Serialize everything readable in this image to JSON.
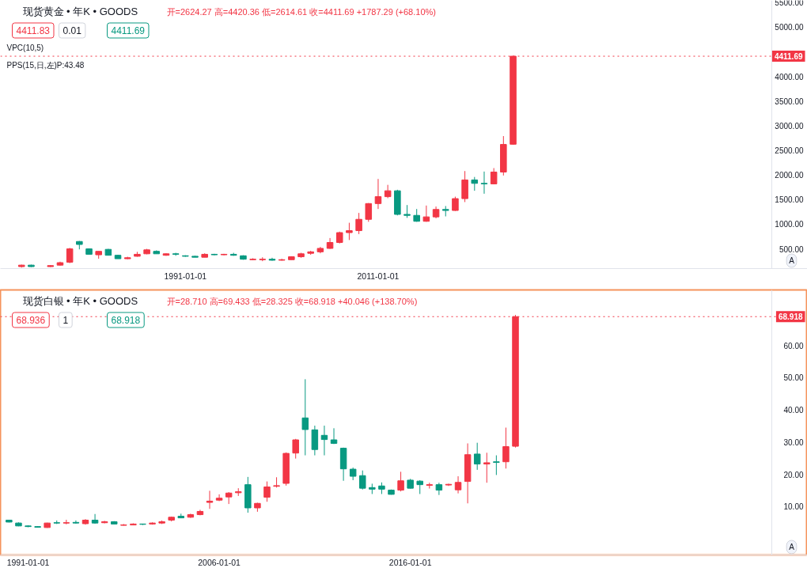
{
  "chart_data": [
    {
      "type": "candlestick",
      "title": "现货黄金 • 年K • GOODS",
      "subtitle": "开=2624.27 高=4420.36 低=2614.61 收=4411.69 +1787.29 (+68.10%)",
      "annotations": [
        "4411.83",
        "0.01",
        "4411.69",
        "VPC(10,5)",
        "PPS(15,日,左)P:43.48",
        "A"
      ],
      "x": [
        "1974",
        "1975",
        "1977",
        "1978",
        "1979",
        "1980",
        "1981",
        "1982",
        "1983",
        "1984",
        "1985",
        "1986",
        "1987",
        "1988",
        "1989",
        "1990",
        "1991",
        "1992",
        "1993",
        "1994",
        "1995",
        "1996",
        "1997",
        "1998",
        "1999",
        "2000",
        "2001",
        "2002",
        "2003",
        "2004",
        "2005",
        "2006",
        "2007",
        "2008",
        "2009",
        "2010",
        "2011",
        "2012",
        "2013",
        "2014",
        "2015",
        "2016",
        "2017",
        "2018",
        "2019",
        "2020",
        "2021",
        "2022",
        "2023",
        "2024",
        "2025"
      ],
      "ohlc": [
        [
          140,
          180,
          120,
          170
        ],
        [
          170,
          180,
          130,
          140
        ],
        [
          140,
          170,
          130,
          160
        ],
        [
          170,
          240,
          160,
          220
        ],
        [
          230,
          520,
          210,
          500
        ],
        [
          650,
          660,
          490,
          590
        ],
        [
          500,
          510,
          390,
          390
        ],
        [
          380,
          450,
          300,
          450
        ],
        [
          490,
          500,
          370,
          370
        ],
        [
          370,
          380,
          300,
          300
        ],
        [
          300,
          340,
          290,
          320
        ],
        [
          350,
          440,
          340,
          390
        ],
        [
          400,
          500,
          390,
          480
        ],
        [
          450,
          470,
          400,
          400
        ],
        [
          370,
          410,
          360,
          400
        ],
        [
          400,
          420,
          360,
          390
        ],
        [
          360,
          370,
          340,
          350
        ],
        [
          350,
          360,
          330,
          330
        ],
        [
          330,
          410,
          330,
          390
        ],
        [
          390,
          400,
          370,
          380
        ],
        [
          380,
          400,
          370,
          390
        ],
        [
          390,
          420,
          360,
          370
        ],
        [
          360,
          370,
          280,
          290
        ],
        [
          280,
          310,
          270,
          290
        ],
        [
          280,
          330,
          250,
          290
        ],
        [
          290,
          320,
          260,
          270
        ],
        [
          270,
          300,
          260,
          280
        ],
        [
          280,
          350,
          280,
          340
        ],
        [
          340,
          420,
          320,
          400
        ],
        [
          410,
          460,
          380,
          440
        ],
        [
          440,
          540,
          410,
          510
        ],
        [
          510,
          720,
          500,
          630
        ],
        [
          630,
          850,
          610,
          830
        ],
        [
          830,
          1030,
          680,
          870
        ],
        [
          870,
          1230,
          800,
          1100
        ],
        [
          1100,
          1430,
          1050,
          1420
        ],
        [
          1420,
          1920,
          1310,
          1560
        ],
        [
          1560,
          1800,
          1530,
          1680
        ],
        [
          1680,
          1700,
          1180,
          1200
        ],
        [
          1200,
          1390,
          1130,
          1180
        ],
        [
          1180,
          1310,
          1050,
          1060
        ],
        [
          1060,
          1380,
          1050,
          1150
        ],
        [
          1150,
          1360,
          1120,
          1300
        ],
        [
          1300,
          1370,
          1160,
          1280
        ],
        [
          1280,
          1560,
          1270,
          1520
        ],
        [
          1520,
          2080,
          1450,
          1900
        ],
        [
          1900,
          1960,
          1680,
          1830
        ],
        [
          1830,
          2070,
          1620,
          1820
        ],
        [
          1820,
          2140,
          1810,
          2060
        ],
        [
          2060,
          2790,
          1990,
          2620
        ],
        [
          2624.27,
          4420.36,
          2614.61,
          4411.69
        ]
      ],
      "colors": [
        "#f23645",
        "#089981",
        "#f23645",
        "#f23645",
        "#f23645",
        "#089981",
        "#089981",
        "#f23645",
        "#089981",
        "#089981",
        "#f23645",
        "#f23645",
        "#f23645",
        "#089981",
        "#f23645",
        "#089981",
        "#089981",
        "#089981",
        "#f23645",
        "#089981",
        "#f23645",
        "#089981",
        "#089981",
        "#f23645",
        "#f23645",
        "#089981",
        "#f23645",
        "#f23645",
        "#f23645",
        "#f23645",
        "#f23645",
        "#f23645",
        "#f23645",
        "#f23645",
        "#f23645",
        "#f23645",
        "#f23645",
        "#f23645",
        "#089981",
        "#089981",
        "#089981",
        "#f23645",
        "#f23645",
        "#089981",
        "#f23645",
        "#f23645",
        "#089981",
        "#089981",
        "#f23645",
        "#f23645",
        "#f23645"
      ],
      "xlim": [
        "1971-10-22",
        "2055-07-16"
      ],
      "xticks": [
        {
          "value": "1991",
          "label": "1991-01-01"
        },
        {
          "value": "2011",
          "label": "2011-01-01"
        }
      ],
      "ylim": [
        100,
        5545
      ],
      "yticks": [
        {
          "value": 500,
          "label": "500.00"
        },
        {
          "value": 1000,
          "label": "1000.00"
        },
        {
          "value": 1500,
          "label": "1500.00"
        },
        {
          "value": 2000,
          "label": "2000.00"
        },
        {
          "value": 2500,
          "label": "2500.00"
        },
        {
          "value": 3000,
          "label": "3000.00"
        },
        {
          "value": 3500,
          "label": "3500.00"
        },
        {
          "value": 4000,
          "label": "4000.00"
        },
        {
          "value": 5000,
          "label": "5000.00"
        },
        {
          "value": 5500,
          "label": "5500.00"
        }
      ],
      "ref_lines": [
        {
          "axis": "y",
          "value": 4411.69,
          "label": "4411.69",
          "color": "#f23645",
          "line_style": "dotted"
        }
      ]
    },
    {
      "type": "candlestick",
      "title": "现货白银 • 年K • GOODS",
      "subtitle": "开=28.710 高=69.433 低=28.325 收=68.918 +40.046 (+138.70%)",
      "annotations": [
        "68.936",
        "1",
        "68.918",
        "A"
      ],
      "categories": [
        null,
        null,
        "1991-01-01",
        null,
        null,
        null,
        null,
        null,
        null,
        null,
        null,
        null,
        null,
        null,
        null,
        null,
        null,
        null,
        null,
        null,
        null,
        null,
        "2006-01-01",
        null,
        null,
        null,
        null,
        null,
        null,
        null,
        null,
        null,
        null,
        null,
        null,
        null,
        null,
        null,
        null,
        null,
        null,
        null,
        "2016-01-01",
        null,
        null,
        null,
        null,
        null,
        null,
        null,
        null,
        null,
        null,
        null,
        null,
        null,
        null,
        null,
        null,
        null,
        null,
        null,
        null,
        null,
        null,
        null,
        null,
        null,
        null,
        null,
        null,
        null,
        null,
        null,
        null,
        null,
        null,
        null,
        null,
        null,
        null,
        null,
        null,
        null
      ],
      "ohlc": [
        [
          5.8,
          5.9,
          5.1,
          5.2
        ],
        [
          4.9,
          5.1,
          3.9,
          4.0
        ],
        [
          4.0,
          4.2,
          3.6,
          3.8
        ],
        [
          3.8,
          3.9,
          3.5,
          3.6
        ],
        [
          3.5,
          5.0,
          3.4,
          4.9
        ],
        [
          5.0,
          5.7,
          4.6,
          4.9
        ],
        [
          4.9,
          5.9,
          4.5,
          5.0
        ],
        [
          5.1,
          5.7,
          4.7,
          4.9
        ],
        [
          4.7,
          6.1,
          4.4,
          5.8
        ],
        [
          5.8,
          7.7,
          4.7,
          4.9
        ],
        [
          5.0,
          5.6,
          4.8,
          5.3
        ],
        [
          5.3,
          5.5,
          4.5,
          4.6
        ],
        [
          4.2,
          4.6,
          4.1,
          4.3
        ],
        [
          4.3,
          4.8,
          4.2,
          4.6
        ],
        [
          4.6,
          4.7,
          4.3,
          4.5
        ],
        [
          4.6,
          5.1,
          4.4,
          4.9
        ],
        [
          4.9,
          5.7,
          4.6,
          5.3
        ],
        [
          5.8,
          6.9,
          5.4,
          6.7
        ],
        [
          7.0,
          7.8,
          6.4,
          6.5
        ],
        [
          6.7,
          7.8,
          6.5,
          7.5
        ],
        [
          7.5,
          9.0,
          7.3,
          8.5
        ],
        [
          11.3,
          14.9,
          9.3,
          11.7
        ],
        [
          12.0,
          13.8,
          11.7,
          12.6
        ],
        [
          13.0,
          14.5,
          10.8,
          14.2
        ],
        [
          14.3,
          15.7,
          13.3,
          14.6
        ],
        [
          16.8,
          19.2,
          8.1,
          9.6
        ],
        [
          9.6,
          11.2,
          8.4,
          11.0
        ],
        [
          12.9,
          17.8,
          11.5,
          16.1
        ],
        [
          16.3,
          19.1,
          15.9,
          16.5
        ],
        [
          17.2,
          26.8,
          16.5,
          26.5
        ],
        [
          26.6,
          31.0,
          24.9,
          30.7
        ],
        [
          37.5,
          49.5,
          25.9,
          33.9
        ],
        [
          33.8,
          35.1,
          25.9,
          27.7
        ],
        [
          32.1,
          35.1,
          25.9,
          30.8
        ],
        [
          30.7,
          34.3,
          29.4,
          29.6
        ],
        [
          28.1,
          28.3,
          18.0,
          21.7
        ],
        [
          21.6,
          22.1,
          18.2,
          19.4
        ],
        [
          19.6,
          21.2,
          15.3,
          15.7
        ],
        [
          15.9,
          17.1,
          13.9,
          15.4
        ],
        [
          16.4,
          17.5,
          13.9,
          15.4
        ],
        [
          15.1,
          15.3,
          13.7,
          13.8
        ],
        [
          15.1,
          20.8,
          14.7,
          18.0
        ],
        [
          18.2,
          18.6,
          15.6,
          15.7
        ],
        [
          17.9,
          18.2,
          13.9,
          16.8
        ],
        [
          16.6,
          17.4,
          15.6,
          16.8
        ],
        [
          16.8,
          17.4,
          13.6,
          15.1
        ],
        [
          16.7,
          17.1,
          16.4,
          16.9
        ],
        [
          15.2,
          19.4,
          14.1,
          17.5
        ],
        [
          17.8,
          29.6,
          11.0,
          26.1
        ],
        [
          26.3,
          29.8,
          21.4,
          23.2
        ],
        [
          23.2,
          26.7,
          17.4,
          23.6
        ],
        [
          23.9,
          25.9,
          19.8,
          23.7
        ],
        [
          23.9,
          34.5,
          21.8,
          28.6
        ],
        [
          28.71,
          69.433,
          28.325,
          68.918
        ],
        null,
        null,
        null,
        null,
        null,
        null,
        null,
        null,
        null,
        null,
        null,
        null,
        null,
        null,
        null,
        null,
        null,
        null,
        null,
        null,
        null,
        null,
        null,
        null,
        null,
        null,
        null,
        null,
        null,
        null
      ],
      "colors": [
        "#089981",
        "#089981",
        "#089981",
        "#089981",
        "#f23645",
        "#089981",
        "#f23645",
        "#089981",
        "#f23645",
        "#089981",
        "#f23645",
        "#089981",
        "#f23645",
        "#f23645",
        "#089981",
        "#f23645",
        "#f23645",
        "#f23645",
        "#089981",
        "#f23645",
        "#f23645",
        "#f23645",
        "#f23645",
        "#f23645",
        "#f23645",
        "#089981",
        "#f23645",
        "#f23645",
        "#f23645",
        "#f23645",
        "#f23645",
        "#089981",
        "#089981",
        "#089981",
        "#089981",
        "#089981",
        "#089981",
        "#089981",
        "#089981",
        "#089981",
        "#089981",
        "#f23645",
        "#089981",
        "#089981",
        "#f23645",
        "#089981",
        "#f23645",
        "#f23645",
        "#f23645",
        "#089981",
        "#f23645",
        "#089981",
        "#f23645",
        "#f23645",
        null,
        null,
        null,
        null,
        null,
        null,
        null,
        null,
        null,
        null,
        null,
        null,
        null,
        null,
        null,
        null,
        null,
        null,
        null,
        null,
        null,
        null,
        null,
        null,
        null,
        null,
        null,
        null,
        null,
        null
      ],
      "ylim": [
        -5,
        77.2
      ],
      "yticks": [
        {
          "value": 10,
          "label": "10.00"
        },
        {
          "value": 20,
          "label": "20.00"
        },
        {
          "value": 30,
          "label": "30.00"
        },
        {
          "value": 40,
          "label": "40.00"
        },
        {
          "value": 50,
          "label": "50.00"
        },
        {
          "value": 60,
          "label": "60.00"
        }
      ],
      "ref_lines": [
        {
          "axis": "y",
          "value": 68.918,
          "label": "68.918",
          "color": "#f23645",
          "line_style": "dotted"
        }
      ]
    }
  ]
}
